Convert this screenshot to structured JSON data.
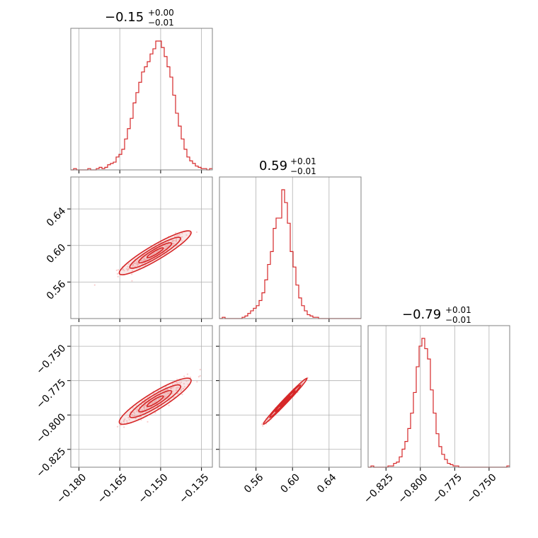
{
  "colors": {
    "series": "#d62728",
    "scatter": "#f4a6a6",
    "contour_fill": "#e8a0a0",
    "grid": "#b0b0b0",
    "frame": "#808080"
  },
  "chart_data": {
    "type": "corner",
    "grid": true,
    "parameters": [
      {
        "title_value": "−0.15",
        "title_plus": "+0.00",
        "title_minus": "−0.01",
        "range": [
          -0.183,
          -0.131
        ],
        "ticks": [
          -0.18,
          -0.165,
          -0.15,
          -0.135
        ],
        "tick_labels": [
          "−0.180",
          "−0.165",
          "−0.150",
          "−0.135"
        ]
      },
      {
        "title_value": "0.59",
        "title_plus": "+0.01",
        "title_minus": "−0.01",
        "range": [
          0.52,
          0.675
        ],
        "ticks": [
          0.56,
          0.6,
          0.64
        ],
        "tick_labels": [
          "0.56",
          "0.60",
          "0.64"
        ]
      },
      {
        "title_value": "−0.79",
        "title_plus": "+0.01",
        "title_minus": "−0.01",
        "range": [
          -0.838,
          -0.735
        ],
        "ticks": [
          -0.825,
          -0.8,
          -0.775,
          -0.75
        ],
        "tick_labels": [
          "−0.825",
          "−0.800",
          "−0.775",
          "−0.750"
        ]
      }
    ],
    "histograms": [
      {
        "param": 0,
        "bin_start": -0.183,
        "bin_width": 0.00104,
        "counts": [
          0,
          1,
          0,
          0,
          0,
          0,
          1,
          0,
          0,
          1,
          2,
          1,
          2,
          4,
          5,
          6,
          10,
          12,
          16,
          24,
          32,
          40,
          52,
          60,
          68,
          76,
          80,
          84,
          90,
          94,
          100,
          100,
          95,
          88,
          80,
          72,
          58,
          44,
          34,
          24,
          16,
          10,
          7,
          5,
          3,
          2,
          1,
          1,
          0,
          1
        ]
      },
      {
        "param": 1,
        "bin_start": 0.52,
        "bin_width": 0.0031,
        "counts": [
          0,
          1,
          0,
          0,
          0,
          0,
          0,
          0,
          1,
          2,
          4,
          6,
          8,
          10,
          14,
          20,
          30,
          42,
          52,
          70,
          78,
          78,
          100,
          90,
          74,
          52,
          40,
          26,
          16,
          10,
          6,
          3,
          2,
          1,
          1,
          0,
          0,
          0,
          0,
          0,
          0,
          0,
          0,
          0,
          0,
          0,
          0,
          0,
          0,
          0
        ]
      },
      {
        "param": 2,
        "bin_start": -0.838,
        "bin_width": 0.00206,
        "counts": [
          0,
          1,
          0,
          0,
          0,
          0,
          0,
          1,
          1,
          3,
          4,
          8,
          14,
          20,
          30,
          42,
          58,
          78,
          94,
          100,
          92,
          84,
          60,
          42,
          26,
          16,
          10,
          6,
          3,
          2,
          1,
          1,
          0,
          0,
          0,
          0,
          0,
          0,
          0,
          0,
          0,
          0,
          0,
          0,
          0,
          0,
          0,
          0,
          0,
          1
        ]
      }
    ],
    "pairs": [
      {
        "x_param": 0,
        "y_param": 1,
        "center": [
          -0.152,
          0.592
        ],
        "sd": [
          0.0055,
          0.01
        ],
        "corr": 0.92
      },
      {
        "x_param": 0,
        "y_param": 2,
        "center": [
          -0.152,
          -0.79
        ],
        "sd": [
          0.0055,
          0.007
        ],
        "corr": 0.9
      },
      {
        "x_param": 1,
        "y_param": 2,
        "center": [
          0.592,
          -0.79
        ],
        "sd": [
          0.01,
          0.007
        ],
        "corr": 0.99
      }
    ]
  }
}
